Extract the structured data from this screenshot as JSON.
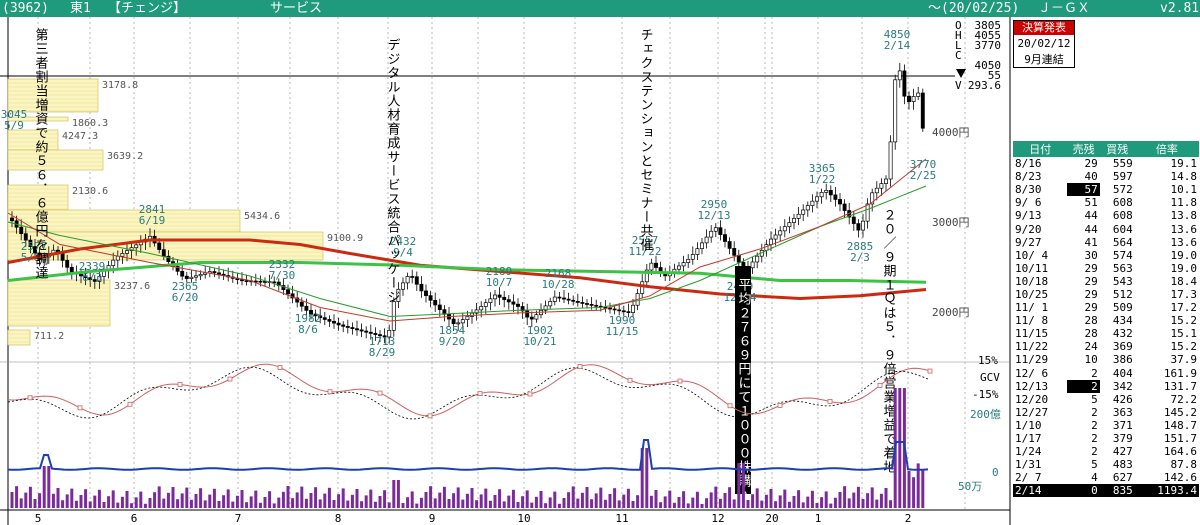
{
  "header": {
    "code": "(3962)",
    "market": "東1",
    "name": "【チェンジ】",
    "sector": "サービス",
    "date": "～(20/02/25)",
    "series": "Ｊ－ＧＸ",
    "version": "v2.81"
  },
  "ohlc": {
    "labels": [
      "O",
      "H",
      "L",
      "C",
      "V"
    ],
    "values": [
      "3805",
      "4055",
      "3770",
      "4050",
      "293.6"
    ],
    "change": "55"
  },
  "kessan": {
    "title": "決算発表",
    "date": "20/02/12",
    "type": "9月連結"
  },
  "table": {
    "headers": [
      "日付",
      "売残",
      "買残",
      "倍率"
    ],
    "rows": [
      [
        "8/16",
        "29",
        "559",
        "19.1"
      ],
      [
        "8/23",
        "40",
        "597",
        "14.8"
      ],
      [
        "8/30",
        "57",
        "572",
        "10.1"
      ],
      [
        "9/ 6",
        "51",
        "608",
        "11.8"
      ],
      [
        "9/13",
        "44",
        "608",
        "13.8"
      ],
      [
        "9/20",
        "44",
        "604",
        "13.6"
      ],
      [
        "9/27",
        "41",
        "564",
        "13.6"
      ],
      [
        "10/ 4",
        "30",
        "574",
        "19.0"
      ],
      [
        "10/11",
        "29",
        "563",
        "19.0"
      ],
      [
        "10/18",
        "29",
        "543",
        "18.4"
      ],
      [
        "10/25",
        "29",
        "512",
        "17.3"
      ],
      [
        "11/ 1",
        "29",
        "509",
        "17.2"
      ],
      [
        "11/ 8",
        "28",
        "434",
        "15.2"
      ],
      [
        "11/15",
        "28",
        "432",
        "15.1"
      ],
      [
        "11/22",
        "24",
        "369",
        "15.2"
      ],
      [
        "11/29",
        "10",
        "386",
        "37.9"
      ],
      [
        "12/ 6",
        "2",
        "404",
        "161.9"
      ],
      [
        "12/13",
        "2",
        "342",
        "131.7"
      ],
      [
        "12/20",
        "5",
        "426",
        "72.2"
      ],
      [
        "12/27",
        "2",
        "363",
        "145.2"
      ],
      [
        "1/10",
        "2",
        "371",
        "148.7"
      ],
      [
        "1/17",
        "2",
        "379",
        "151.7"
      ],
      [
        "1/24",
        "2",
        "427",
        "164.6"
      ],
      [
        "1/31",
        "5",
        "483",
        "87.8"
      ],
      [
        "2/ 7",
        "4",
        "627",
        "142.6"
      ],
      [
        "2/14",
        "0",
        "835",
        "1193.4"
      ]
    ]
  },
  "chart_data": {
    "type": "candlestick",
    "x_months": [
      "5",
      "6",
      "7",
      "8",
      "9",
      "10",
      "11",
      "12",
      "20",
      "1",
      "2"
    ],
    "price_axis_labels": [
      "4000円",
      "3000円",
      "2000円"
    ],
    "ylim": [
      1600,
      4100
    ],
    "oscillator_labels": [
      "15%",
      "GCV",
      "-15%"
    ],
    "volume_labels": [
      "200億",
      "0",
      "50万"
    ],
    "volume_profile": [
      {
        "price": 3178.8,
        "label": "3178.8"
      },
      {
        "price": 1860.3,
        "label": "1860.3"
      },
      {
        "price": 4247.3,
        "label": "4247.3"
      },
      {
        "price": 3639.2,
        "label": "3639.2"
      },
      {
        "price": 2130.6,
        "label": "2130.6"
      },
      {
        "price": 5434.6,
        "label": "5434.6"
      },
      {
        "price": 9100.9,
        "label": "9100.9"
      },
      {
        "price": 3237.6,
        "label": "3237.6"
      },
      {
        "price": 711.2,
        "label": "711.2"
      }
    ],
    "price_annotations": [
      {
        "label": "5/9",
        "value": "3045"
      },
      {
        "label": "5/17",
        "value": "2577"
      },
      {
        "label": "6/3",
        "value": "2339"
      },
      {
        "label": "6/19",
        "value": "2841"
      },
      {
        "label": "6/20",
        "value": "2365"
      },
      {
        "label": "7/30",
        "value": "2332"
      },
      {
        "label": "8/6",
        "value": "1982"
      },
      {
        "label": "8/29",
        "value": "1713"
      },
      {
        "label": "9/4",
        "value": "2432"
      },
      {
        "label": "9/20",
        "value": "1854"
      },
      {
        "label": "10/7",
        "value": "2189"
      },
      {
        "label": "10/21",
        "value": "1902"
      },
      {
        "label": "10/28",
        "value": "2168"
      },
      {
        "label": "11/15",
        "value": "1990"
      },
      {
        "label": "11/22",
        "value": "2557"
      },
      {
        "label": "12/13",
        "value": "2950"
      },
      {
        "label": "12/24",
        "value": "2449"
      },
      {
        "label": "1/22",
        "value": "3365"
      },
      {
        "label": "2/3",
        "value": "2885"
      },
      {
        "label": "2/14",
        "value": "4850"
      },
      {
        "label": "2/25",
        "value": "3770"
      }
    ],
    "news": [
      "第三者割当増資で約５６．６億円を調達",
      "デジタル人材育成サービス統合パッケージ",
      "チェクステンションとセミナー共催",
      "平均２７６９円にて１０００株購入",
      "２０／９期１Ｑは５．９倍営業増益で着地"
    ]
  }
}
